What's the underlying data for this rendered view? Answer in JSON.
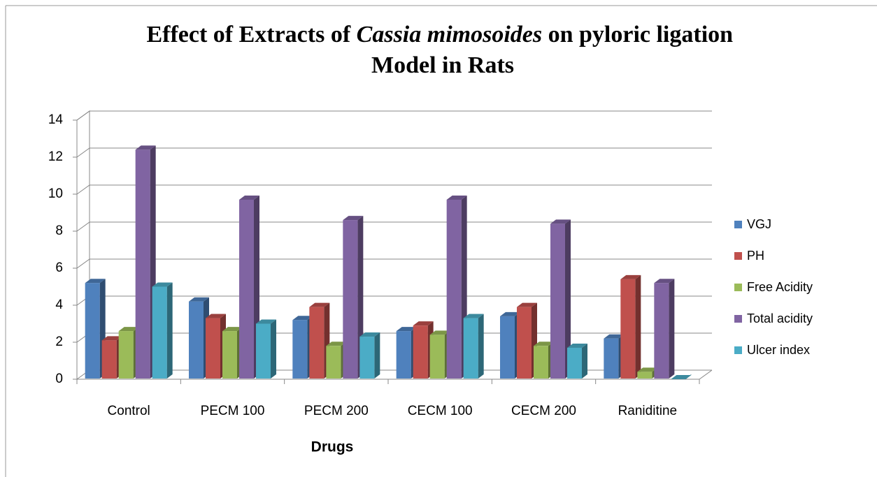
{
  "chart_data": {
    "type": "bar3d",
    "title": [
      "Effect of Extracts of",
      "Cassia mimosoides",
      "on pyloric ligation",
      "Model in Rats"
    ],
    "x_label": "Drugs",
    "categories": [
      "Control",
      "PECM 100",
      "PECM 200",
      "CECM 100",
      "CECM 200",
      "Raniditine"
    ],
    "series": [
      {
        "name": "VGJ",
        "color": "#4f81bd",
        "values": [
          5.2,
          4.2,
          3.2,
          2.6,
          3.4,
          2.2
        ]
      },
      {
        "name": "PH",
        "color": "#c0504d",
        "values": [
          2.1,
          3.3,
          3.9,
          2.9,
          3.9,
          5.4
        ]
      },
      {
        "name": "Free Acidity",
        "color": "#9bbb59",
        "values": [
          2.6,
          2.6,
          1.8,
          2.4,
          1.8,
          0.4
        ]
      },
      {
        "name": "Total acidity",
        "color": "#8064a2",
        "values": [
          12.4,
          9.7,
          8.6,
          9.7,
          8.4,
          5.2
        ]
      },
      {
        "name": "Ulcer index",
        "color": "#4bacc6",
        "values": [
          5.0,
          3.0,
          2.3,
          3.3,
          1.7,
          0
        ]
      }
    ],
    "ylim": [
      0,
      14
    ],
    "yticks": [
      0,
      2,
      4,
      6,
      8,
      10,
      12,
      14
    ],
    "grid": true,
    "legend": "right"
  }
}
